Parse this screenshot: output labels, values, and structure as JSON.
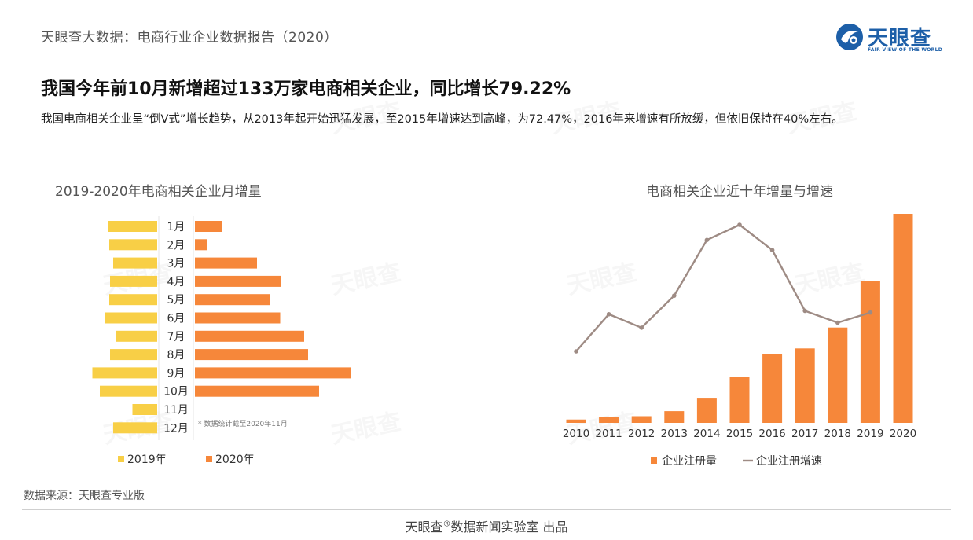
{
  "header": {
    "title": "天眼查大数据：电商行业企业数据报告（2020）",
    "logo_text": "天眼查",
    "logo_sub": "FAIR VIEW OF THE WORLD"
  },
  "headline": "我国今年前10月新增超过133万家电商相关企业，同比增长79.22%",
  "description": "我国电商相关企业呈“倒V式”增长趋势，从2013年起开始迅猛发展，至2015年增速达到高峰，为72.47%，2016年来增速有所放缓，但依旧保持在40%左右。",
  "watermark": "天眼查",
  "colors": {
    "y2019": "#f8cf46",
    "y2020": "#f6873a",
    "line": "#9e8b84",
    "bar": "#f6873a"
  },
  "chart_data": [
    {
      "type": "bar",
      "orientation": "horizontal-butterfly",
      "title": "2019-2020年电商相关企业月增量",
      "categories": [
        "1月",
        "2月",
        "3月",
        "4月",
        "5月",
        "6月",
        "7月",
        "8月",
        "9月",
        "10月",
        "11月",
        "12月"
      ],
      "series": [
        {
          "name": "2019年",
          "values": [
            125,
            122,
            112,
            120,
            122,
            132,
            105,
            120,
            165,
            146,
            63,
            112
          ]
        },
        {
          "name": "2020年",
          "values": [
            70,
            30,
            158,
            220,
            190,
            217,
            278,
            288,
            396,
            316,
            null,
            null
          ]
        }
      ],
      "note": "* 数据统计截至2020年11月",
      "legend_position": "bottom-left",
      "value_axis_visible": false
    },
    {
      "type": "bar+line",
      "title": "电商相关企业近十年增量与增速",
      "categories": [
        "2010",
        "2011",
        "2012",
        "2013",
        "2014",
        "2015",
        "2016",
        "2017",
        "2018",
        "2019",
        "2020"
      ],
      "series": [
        {
          "name": "企业注册量",
          "type": "bar",
          "values": [
            4,
            7,
            8,
            14,
            30,
            55,
            82,
            89,
            114,
            170,
            250
          ]
        },
        {
          "name": "企业注册增速",
          "type": "line",
          "values": [
            22,
            44,
            36,
            55,
            88,
            97,
            82,
            46,
            39,
            45,
            null
          ]
        }
      ],
      "value_axis_visible": false,
      "legend_position": "bottom-center"
    }
  ],
  "source": "数据来源：天眼查专业版",
  "footer": {
    "prefix": "天眼查",
    "mark": "®",
    "suffix": "数据新闻实验室 出品"
  }
}
